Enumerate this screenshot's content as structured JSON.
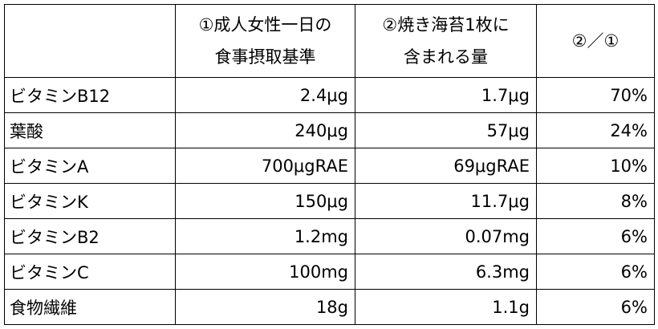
{
  "table": {
    "headers": [
      {
        "line1": "",
        "line2": ""
      },
      {
        "line1": "①成人女性一日の",
        "line2": "食事摂取基準"
      },
      {
        "line1": "②焼き海苔1枚に",
        "line2": "含まれる量"
      },
      {
        "line1": "②／①",
        "line2": ""
      }
    ],
    "rows": [
      {
        "name": "ビタミンB12",
        "standard": "2.4μg",
        "nori": "1.7μg",
        "ratio": "70%"
      },
      {
        "name": "葉酸",
        "standard": "240μg",
        "nori": "57μg",
        "ratio": "24%"
      },
      {
        "name": "ビタミンA",
        "standard": "700μgRAE",
        "nori": "69μgRAE",
        "ratio": "10%"
      },
      {
        "name": "ビタミンK",
        "standard": "150μg",
        "nori": "11.7μg",
        "ratio": "8%"
      },
      {
        "name": "ビタミンB2",
        "standard": "1.2mg",
        "nori": "0.07mg",
        "ratio": "6%"
      },
      {
        "name": "ビタミンC",
        "standard": "100mg",
        "nori": "6.3mg",
        "ratio": "6%"
      },
      {
        "name": "食物繊維",
        "standard": "18g",
        "nori": "1.1g",
        "ratio": "6%"
      }
    ]
  }
}
